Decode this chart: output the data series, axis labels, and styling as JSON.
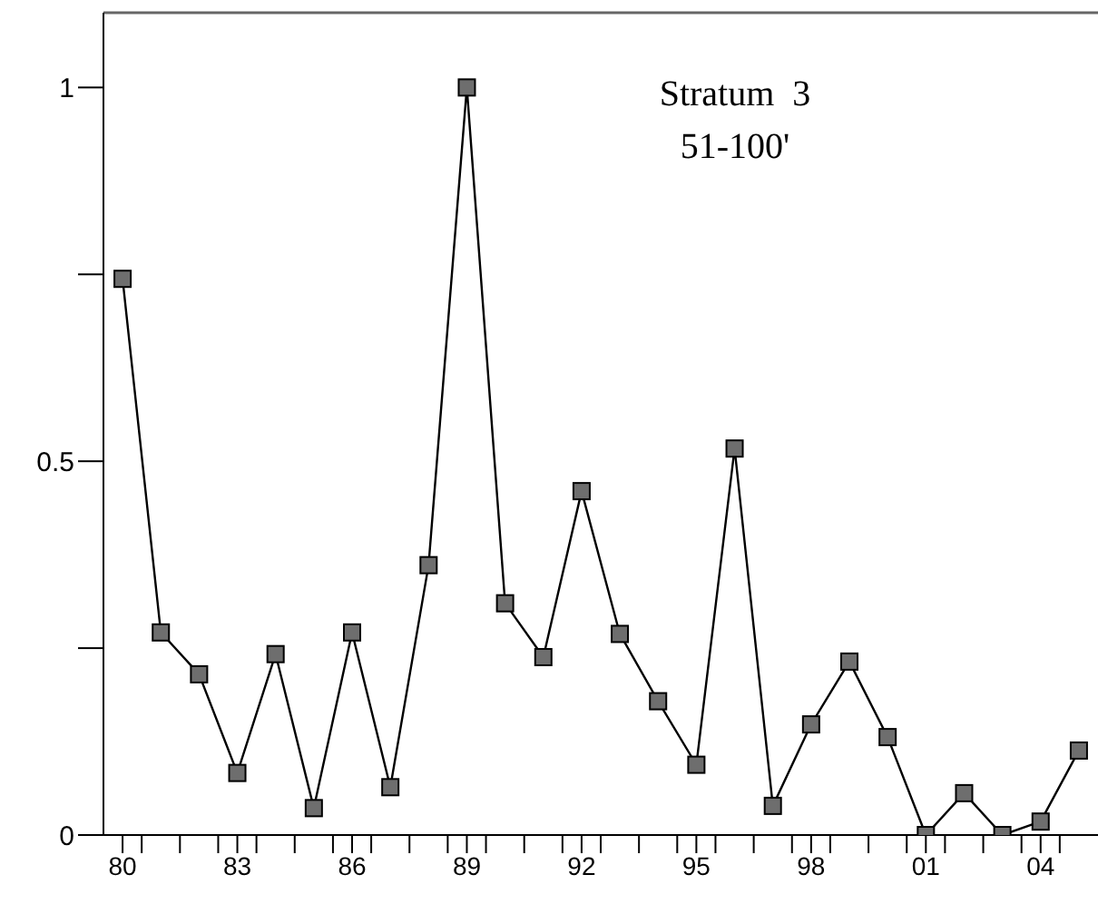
{
  "chart_data": {
    "type": "line",
    "title": "Stratum  3",
    "subtitle": "51-100'",
    "x": [
      1980,
      1981,
      1982,
      1983,
      1984,
      1985,
      1986,
      1987,
      1988,
      1989,
      1990,
      1991,
      1992,
      1993,
      1994,
      1995,
      1996,
      1997,
      1998,
      1999,
      2000,
      2001,
      2002,
      2003,
      2004,
      2005
    ],
    "series": [
      {
        "color": "#000000",
        "values": [
          0.744,
          0.271,
          0.215,
          0.083,
          0.242,
          0.036,
          0.271,
          0.064,
          0.361,
          1.0,
          0.31,
          0.238,
          0.46,
          0.269,
          0.179,
          0.094,
          0.517,
          0.039,
          0.148,
          0.232,
          0.131,
          0,
          0.056,
          0,
          0.018,
          0.113
        ]
      }
    ],
    "marker": "square",
    "line_style": "solid",
    "grid": false,
    "legend": false,
    "xlim": [
      1979.5,
      2005.5
    ],
    "xticks": [
      {
        "value": 1980,
        "label": "80"
      },
      {
        "value": 1980.5,
        "label": null
      },
      {
        "value": 1981.5,
        "label": null
      },
      {
        "value": 1982.5,
        "label": null
      },
      {
        "value": 1983,
        "label": "83"
      },
      {
        "value": 1983.5,
        "label": null
      },
      {
        "value": 1984.5,
        "label": null
      },
      {
        "value": 1985.5,
        "label": null
      },
      {
        "value": 1986,
        "label": "86"
      },
      {
        "value": 1986.5,
        "label": null
      },
      {
        "value": 1987.5,
        "label": null
      },
      {
        "value": 1988.5,
        "label": null
      },
      {
        "value": 1989,
        "label": "89"
      },
      {
        "value": 1989.5,
        "label": null
      },
      {
        "value": 1990.5,
        "label": null
      },
      {
        "value": 1991.5,
        "label": null
      },
      {
        "value": 1992,
        "label": "92"
      },
      {
        "value": 1992.5,
        "label": null
      },
      {
        "value": 1993.5,
        "label": null
      },
      {
        "value": 1994.5,
        "label": null
      },
      {
        "value": 1995,
        "label": "95"
      },
      {
        "value": 1995.5,
        "label": null
      },
      {
        "value": 1996.5,
        "label": null
      },
      {
        "value": 1997.5,
        "label": null
      },
      {
        "value": 1998,
        "label": "98"
      },
      {
        "value": 1998.5,
        "label": null
      },
      {
        "value": 1999.5,
        "label": null
      },
      {
        "value": 2000.5,
        "label": null
      },
      {
        "value": 2001,
        "label": "01"
      },
      {
        "value": 2001.5,
        "label": null
      },
      {
        "value": 2002.5,
        "label": null
      },
      {
        "value": 2003.5,
        "label": null
      },
      {
        "value": 2004,
        "label": "04"
      },
      {
        "value": 2004.5,
        "label": null
      }
    ],
    "ylim": [
      0,
      1.1
    ],
    "yticks": [
      0,
      {
        "value": 0.25,
        "label": null
      },
      0.5,
      {
        "value": 0.75,
        "label": null
      },
      1
    ]
  }
}
